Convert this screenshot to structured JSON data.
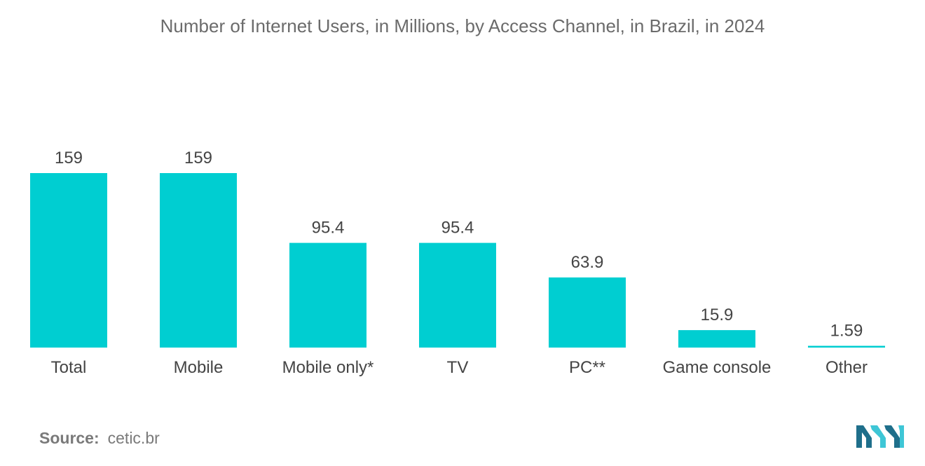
{
  "chart_data": {
    "type": "bar",
    "title": "Number of Internet Users, in Millions, by Access Channel, in Brazil, in 2024",
    "categories": [
      "Total",
      "Mobile",
      "Mobile only*",
      "TV",
      "PC**",
      "Game console",
      "Other"
    ],
    "values": [
      159,
      159,
      95.4,
      95.4,
      63.9,
      15.9,
      1.59
    ],
    "value_labels": [
      "159",
      "159",
      "95.4",
      "95.4",
      "63.9",
      "15.9",
      "1.59"
    ],
    "xlabel": "",
    "ylabel": "",
    "ylim": [
      0,
      159
    ],
    "grid": false,
    "legend": "none"
  },
  "source": {
    "label": "Source:",
    "value": "cetic.br"
  },
  "colors": {
    "bar": "#00CED1",
    "title": "#6b6b6b",
    "label": "#444444",
    "source": "#7a7a7a",
    "logo_dark": "#1f6f8b",
    "logo_light": "#3ec6d6"
  },
  "logo": {
    "icon": "mordor-intelligence-logo-icon"
  }
}
